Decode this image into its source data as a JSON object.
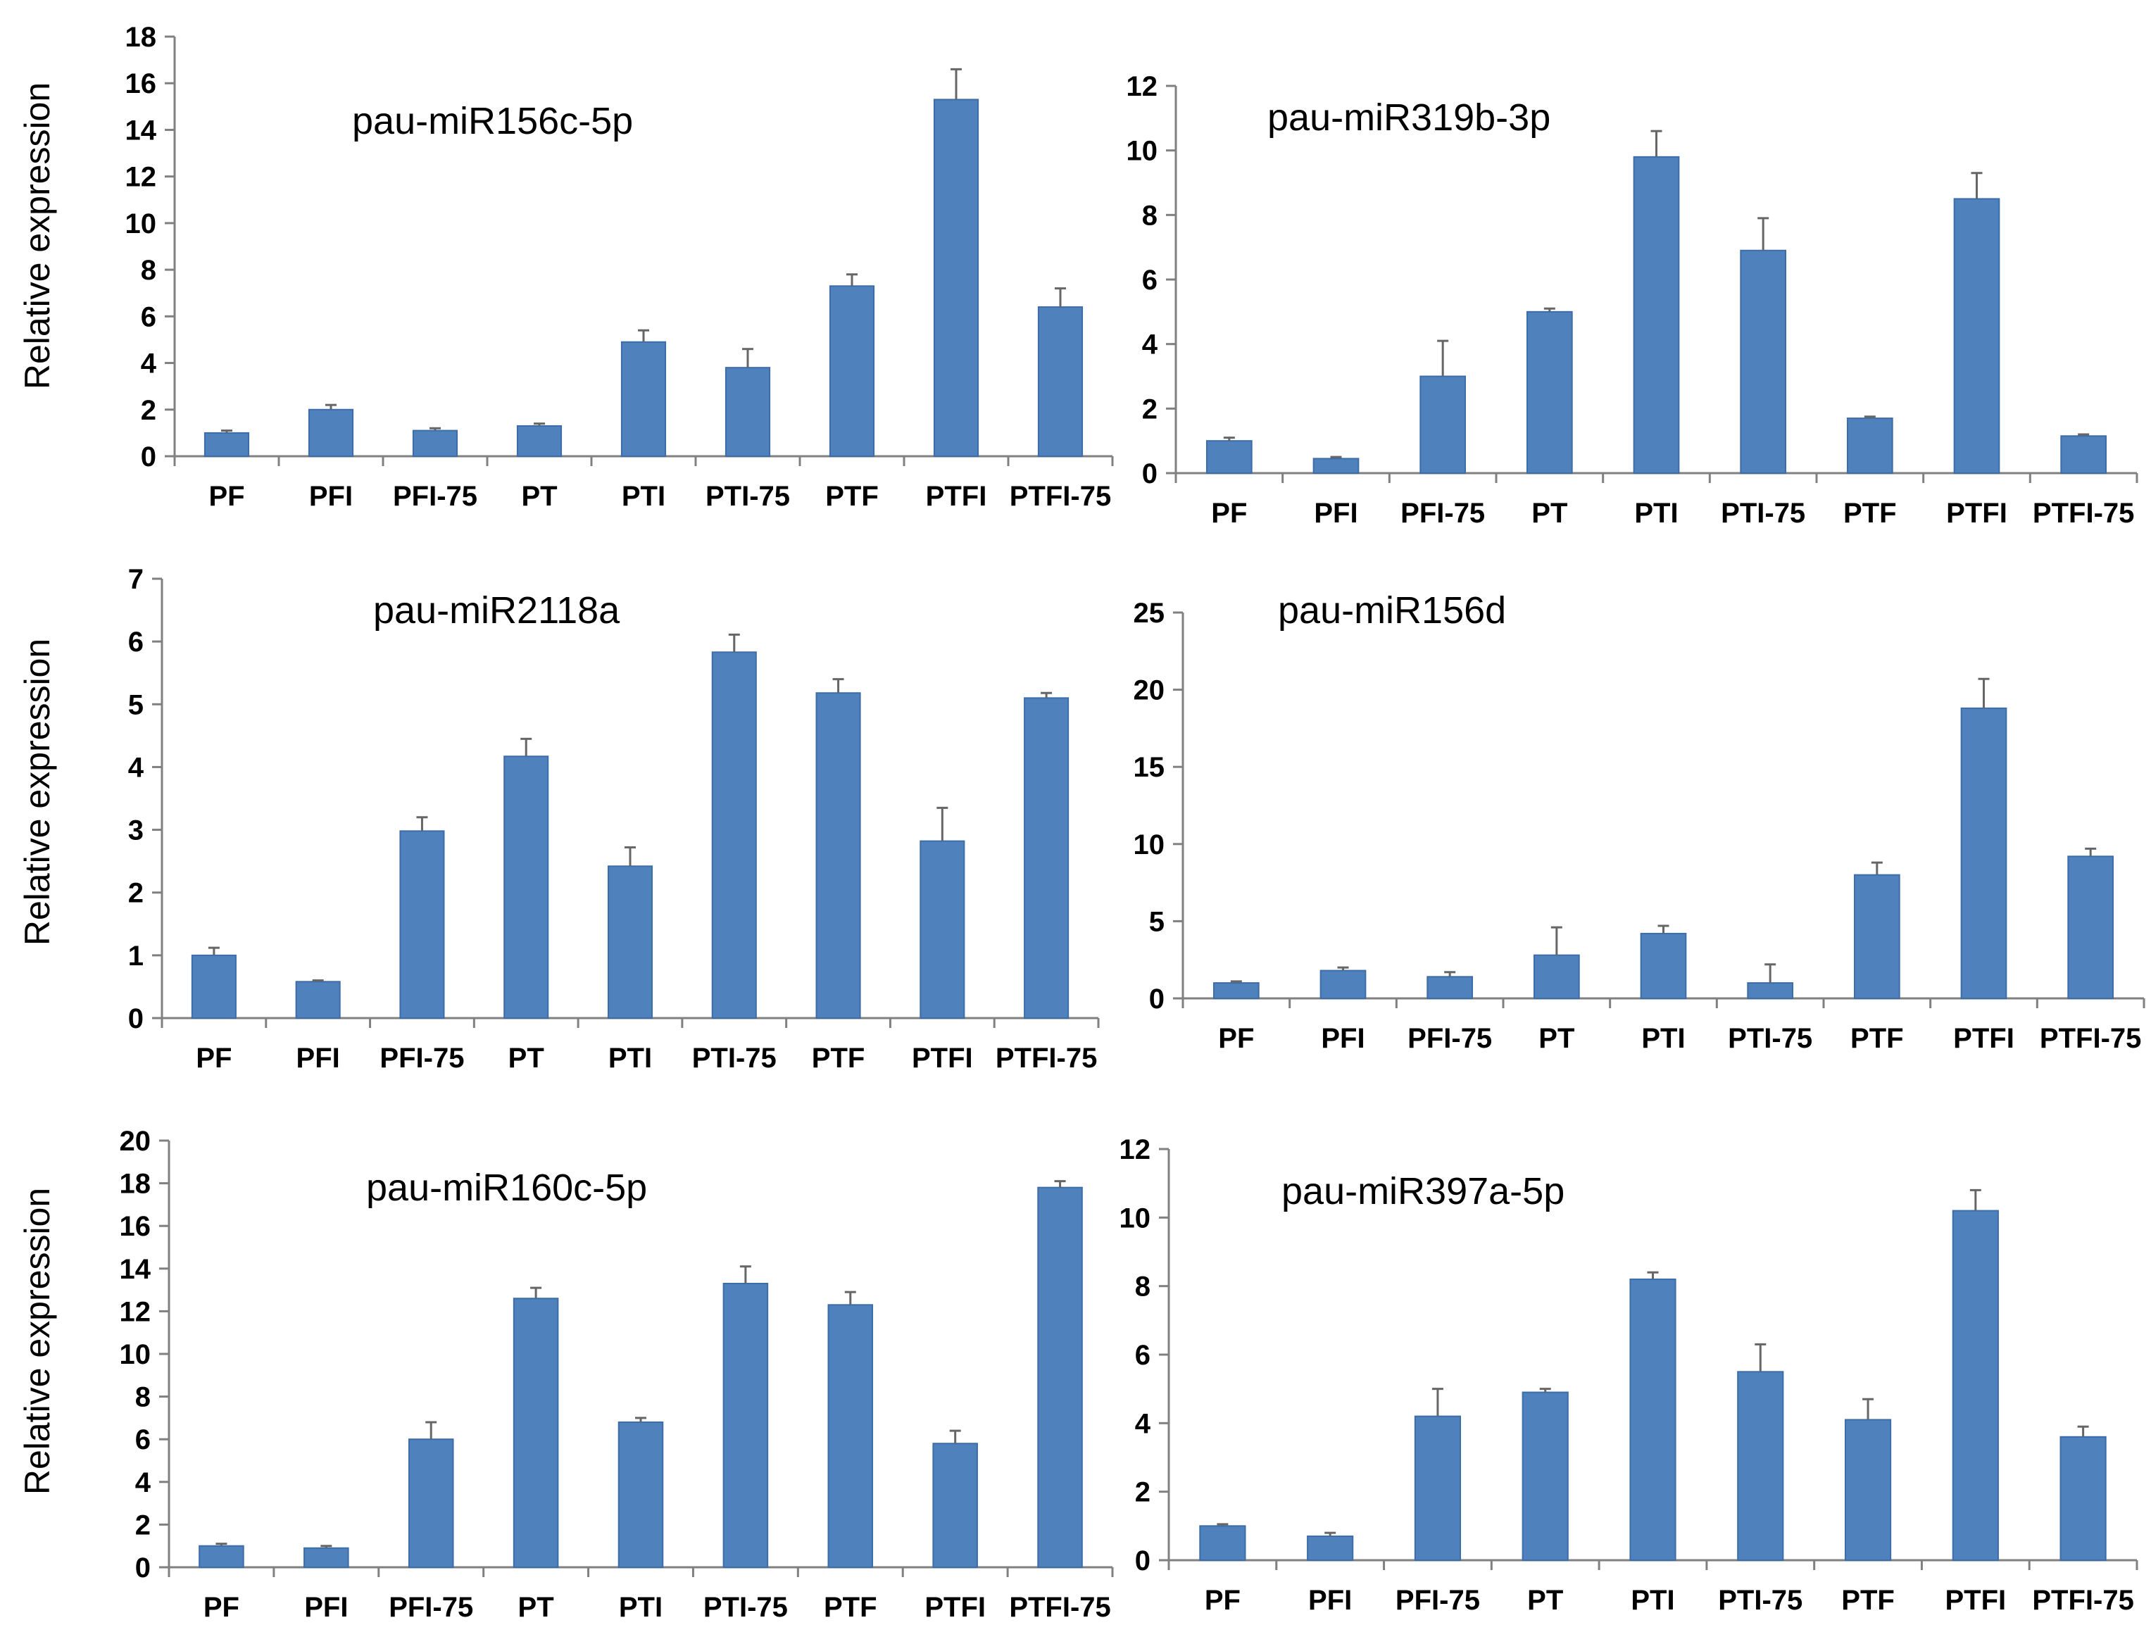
{
  "colors": {
    "bar": "#4F81BD",
    "bar_edge": "#3C6DA8",
    "axis": "#808080",
    "error": "#666666",
    "text": "#000000"
  },
  "chart_data": [
    {
      "type": "bar",
      "title": "pau-miR156c-5p",
      "ylabel": "Relative expression",
      "categories": [
        "PF",
        "PFI",
        "PFI-75",
        "PT",
        "PTI",
        "PTI-75",
        "PTF",
        "PTFI",
        "PTFI-75"
      ],
      "values": [
        1.0,
        2.0,
        1.1,
        1.3,
        4.9,
        3.8,
        7.3,
        15.3,
        6.4
      ],
      "errors": [
        0.1,
        0.2,
        0.1,
        0.1,
        0.5,
        0.8,
        0.5,
        1.3,
        0.8
      ],
      "yticks": [
        0,
        2,
        4,
        6,
        8,
        10,
        12,
        14,
        16,
        18
      ],
      "ylim": [
        0,
        18
      ],
      "grid": false
    },
    {
      "type": "bar",
      "title": "pau-miR319b-3p",
      "ylabel": "",
      "categories": [
        "PF",
        "PFI",
        "PFI-75",
        "PT",
        "PTI",
        "PTI-75",
        "PTF",
        "PTFI",
        "PTFI-75"
      ],
      "values": [
        1.0,
        0.45,
        3.0,
        5.0,
        9.8,
        6.9,
        1.7,
        8.5,
        1.15
      ],
      "errors": [
        0.1,
        0.05,
        1.1,
        0.1,
        0.8,
        1.0,
        0.05,
        0.8,
        0.05
      ],
      "yticks": [
        0,
        2,
        4,
        6,
        8,
        10,
        12
      ],
      "ylim": [
        0,
        12
      ],
      "grid": false
    },
    {
      "type": "bar",
      "title": "pau-miR2118a",
      "ylabel": "Relative expression",
      "categories": [
        "PF",
        "PFI",
        "PFI-75",
        "PT",
        "PTI",
        "PTI-75",
        "PTF",
        "PTFI",
        "PTFI-75"
      ],
      "values": [
        1.0,
        0.58,
        2.98,
        4.17,
        2.42,
        5.83,
        5.18,
        2.82,
        5.1
      ],
      "errors": [
        0.12,
        0.02,
        0.22,
        0.28,
        0.3,
        0.28,
        0.22,
        0.53,
        0.08
      ],
      "yticks": [
        0,
        1,
        2,
        3,
        4,
        5,
        6,
        7
      ],
      "ylim": [
        0,
        7
      ],
      "grid": false
    },
    {
      "type": "bar",
      "title": "pau-miR156d",
      "ylabel": "",
      "categories": [
        "PF",
        "PFI",
        "PFI-75",
        "PT",
        "PTI",
        "PTI-75",
        "PTF",
        "PTFI",
        "PTFI-75"
      ],
      "values": [
        1.0,
        1.8,
        1.4,
        2.8,
        4.2,
        1.0,
        8.0,
        18.8,
        9.2
      ],
      "errors": [
        0.1,
        0.2,
        0.3,
        1.8,
        0.5,
        1.2,
        0.8,
        1.9,
        0.5
      ],
      "yticks": [
        0,
        5,
        10,
        15,
        20,
        25
      ],
      "ylim": [
        0,
        25
      ],
      "grid": false
    },
    {
      "type": "bar",
      "title": "pau-miR160c-5p",
      "ylabel": "Relative expression",
      "categories": [
        "PF",
        "PFI",
        "PFI-75",
        "PT",
        "PTI",
        "PTI-75",
        "PTF",
        "PTFI",
        "PTFI-75"
      ],
      "values": [
        1.0,
        0.9,
        6.0,
        12.6,
        6.8,
        13.3,
        12.3,
        5.8,
        17.8
      ],
      "errors": [
        0.1,
        0.1,
        0.8,
        0.5,
        0.2,
        0.8,
        0.6,
        0.6,
        0.3
      ],
      "yticks": [
        0,
        2,
        4,
        6,
        8,
        10,
        12,
        14,
        16,
        18,
        20
      ],
      "ylim": [
        0,
        20
      ],
      "grid": false
    },
    {
      "type": "bar",
      "title": "pau-miR397a-5p",
      "ylabel": "",
      "categories": [
        "PF",
        "PFI",
        "PFI-75",
        "PT",
        "PTI",
        "PTI-75",
        "PTF",
        "PTFI",
        "PTFI-75"
      ],
      "values": [
        1.0,
        0.7,
        4.2,
        4.9,
        8.2,
        5.5,
        4.1,
        10.2,
        3.6
      ],
      "errors": [
        0.05,
        0.1,
        0.8,
        0.1,
        0.2,
        0.8,
        0.6,
        0.6,
        0.3
      ],
      "yticks": [
        0,
        2,
        4,
        6,
        8,
        10,
        12
      ],
      "ylim": [
        0,
        12
      ],
      "grid": false
    }
  ]
}
